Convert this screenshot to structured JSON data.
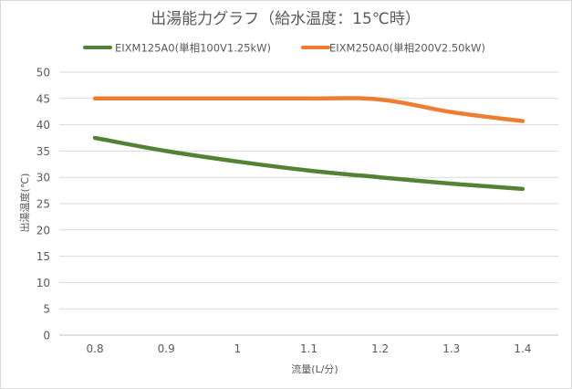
{
  "chart_data": {
    "type": "line",
    "title": "出湯能力グラフ（給水温度：15℃時）",
    "xlabel": "流量(L/分)",
    "ylabel": "出湯温度(℃)",
    "categories": [
      "0.8",
      "0.9",
      "1",
      "1.1",
      "1.2",
      "1.3",
      "1.4"
    ],
    "x": [
      0.8,
      0.9,
      1.0,
      1.1,
      1.2,
      1.3,
      1.4
    ],
    "ylim": [
      0,
      50
    ],
    "yticks": [
      "0",
      "5",
      "10",
      "15",
      "20",
      "25",
      "30",
      "35",
      "40",
      "45",
      "50"
    ],
    "grid": true,
    "legend_position": "top",
    "series": [
      {
        "name": "EIXM125A0(単相100V1.25kW)",
        "color": "#548235",
        "values": [
          37.5,
          35.0,
          33.0,
          31.3,
          30.0,
          28.8,
          27.8
        ]
      },
      {
        "name": "EIXM250A0(単相200V2.50kW)",
        "color": "#ed7d31",
        "values": [
          45.0,
          45.0,
          45.0,
          45.0,
          44.8,
          42.4,
          40.7
        ]
      }
    ]
  }
}
